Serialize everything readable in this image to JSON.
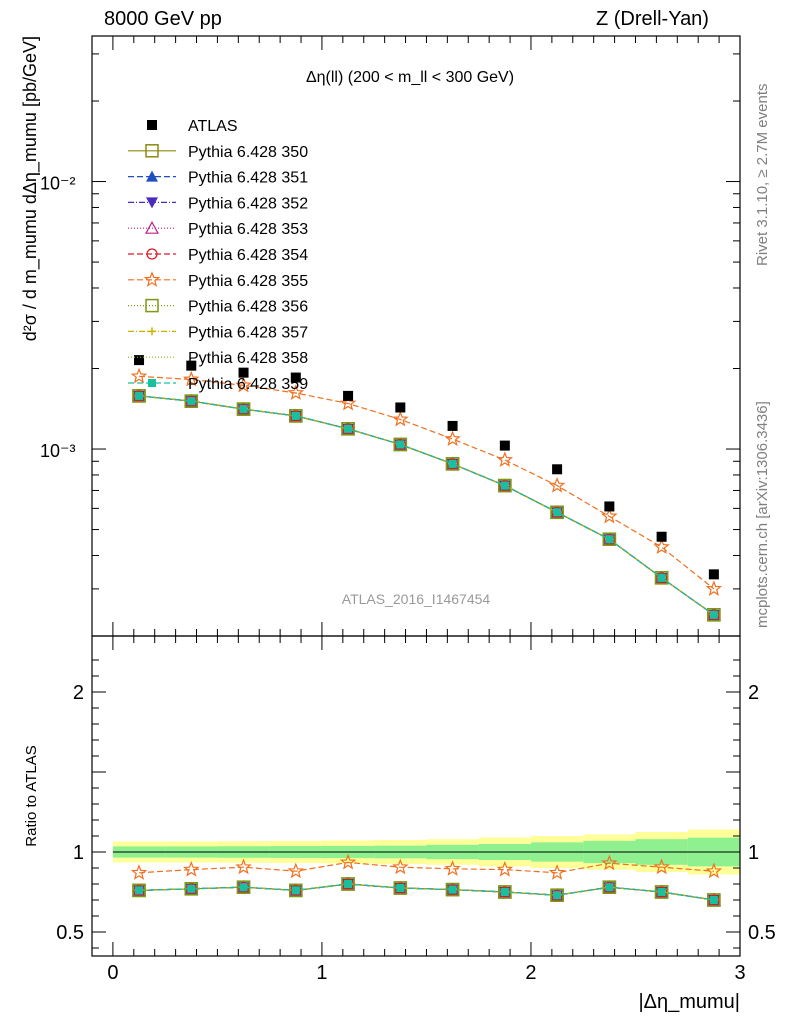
{
  "header": {
    "left": "8000 GeV pp",
    "right": "Z (Drell-Yan)"
  },
  "side_labels": {
    "rivet": "Rivet 3.1.10, ≥ 2.7M events",
    "mcplots": "mcplots.cern.ch [arXiv:1306.3436]"
  },
  "chart_data": {
    "type": "line",
    "title": "Δη(ll) (200 < m_ll < 300 GeV)",
    "watermark": "ATLAS_2016_I1467454",
    "ylabel": "d²σ / d m_mumu dΔη_mumu [pb/GeV]",
    "xlabel": "|Δη_mumu|",
    "ratio_ylabel": "Ratio to ATLAS",
    "yscale": "log",
    "ylim": [
      0.0002,
      0.035
    ],
    "xlim": [
      -0.1,
      3.0
    ],
    "ratio_ylim": [
      0.35,
      2.35
    ],
    "x_ticks": [
      "0",
      "1",
      "2",
      "3"
    ],
    "y_ticks": [
      "10⁻³",
      "10⁻²"
    ],
    "ratio_ticks": [
      "0.5",
      "1",
      "2"
    ],
    "grid": false,
    "legend_position": "top-left",
    "x": [
      0.125,
      0.375,
      0.625,
      0.875,
      1.125,
      1.375,
      1.625,
      1.875,
      2.125,
      2.375,
      2.625,
      2.875
    ],
    "atlas": [
      0.00215,
      0.00205,
      0.00193,
      0.00185,
      0.00158,
      0.00143,
      0.00122,
      0.00103,
      0.00084,
      0.00061,
      0.00047,
      0.00034
    ],
    "ratio_band_inner": [
      0.035,
      0.035,
      0.036,
      0.037,
      0.038,
      0.04,
      0.045,
      0.05,
      0.06,
      0.07,
      0.08,
      0.09
    ],
    "ratio_band_outer": [
      0.065,
      0.066,
      0.067,
      0.069,
      0.072,
      0.075,
      0.08,
      0.09,
      0.1,
      0.11,
      0.125,
      0.14
    ],
    "series": [
      {
        "name": "Pythia 6.428 350",
        "color": "#8b8b10",
        "marker": "square-open",
        "dash": "solid",
        "values": [
          0.00158,
          0.00151,
          0.00141,
          0.00133,
          0.00119,
          0.00104,
          0.00088,
          0.00073,
          0.00058,
          0.00046,
          0.00033,
          0.00024
        ],
        "ratio": [
          0.76,
          0.77,
          0.78,
          0.76,
          0.8,
          0.775,
          0.765,
          0.75,
          0.73,
          0.78,
          0.75,
          0.7
        ]
      },
      {
        "name": "Pythia 6.428 351",
        "color": "#1f4fbf",
        "marker": "triangle-up",
        "dash": "6,3",
        "values": [
          0.00158,
          0.00151,
          0.00141,
          0.00133,
          0.00119,
          0.00104,
          0.00088,
          0.00073,
          0.00058,
          0.00046,
          0.00033,
          0.00024
        ],
        "ratio": [
          0.76,
          0.77,
          0.78,
          0.76,
          0.8,
          0.775,
          0.765,
          0.75,
          0.73,
          0.78,
          0.75,
          0.7
        ]
      },
      {
        "name": "Pythia 6.428 352",
        "color": "#4b2cbf",
        "marker": "triangle-down",
        "dash": "6,2,1,2",
        "values": [
          0.00158,
          0.00151,
          0.00141,
          0.00133,
          0.00119,
          0.00104,
          0.00088,
          0.00073,
          0.00058,
          0.00046,
          0.00033,
          0.00024
        ],
        "ratio": [
          0.76,
          0.77,
          0.78,
          0.76,
          0.8,
          0.775,
          0.765,
          0.75,
          0.73,
          0.78,
          0.75,
          0.7
        ]
      },
      {
        "name": "Pythia 6.428 353",
        "color": "#bf1f8a",
        "marker": "triangle-open",
        "dash": "1,2",
        "values": [
          0.00158,
          0.00151,
          0.00141,
          0.00133,
          0.00119,
          0.00104,
          0.00088,
          0.00073,
          0.00058,
          0.00046,
          0.00033,
          0.00024
        ],
        "ratio": [
          0.76,
          0.77,
          0.78,
          0.76,
          0.8,
          0.775,
          0.765,
          0.75,
          0.73,
          0.78,
          0.75,
          0.7
        ]
      },
      {
        "name": "Pythia 6.428 354",
        "color": "#d91a2a",
        "marker": "circle-open",
        "dash": "6,3",
        "values": [
          0.00158,
          0.00151,
          0.00141,
          0.00133,
          0.00119,
          0.00104,
          0.00088,
          0.00073,
          0.00058,
          0.00046,
          0.00033,
          0.00024
        ],
        "ratio": [
          0.76,
          0.77,
          0.78,
          0.76,
          0.8,
          0.775,
          0.765,
          0.75,
          0.73,
          0.78,
          0.75,
          0.7
        ]
      },
      {
        "name": "Pythia 6.428 355",
        "color": "#f07020",
        "marker": "star-open",
        "dash": "6,3",
        "values": [
          0.00187,
          0.00182,
          0.00173,
          0.00162,
          0.00148,
          0.00129,
          0.00109,
          0.00091,
          0.00073,
          0.00056,
          0.00043,
          0.0003
        ],
        "ratio": [
          0.87,
          0.89,
          0.905,
          0.88,
          0.935,
          0.905,
          0.895,
          0.89,
          0.87,
          0.93,
          0.905,
          0.88
        ]
      },
      {
        "name": "Pythia 6.428 356",
        "color": "#7a9a10",
        "marker": "square-open",
        "dash": "1,2",
        "values": [
          0.00158,
          0.00151,
          0.00141,
          0.00133,
          0.00119,
          0.00104,
          0.00088,
          0.00073,
          0.00058,
          0.00046,
          0.00033,
          0.00024
        ],
        "ratio": [
          0.76,
          0.77,
          0.78,
          0.76,
          0.8,
          0.775,
          0.765,
          0.75,
          0.73,
          0.78,
          0.75,
          0.7
        ]
      },
      {
        "name": "Pythia 6.428 357",
        "color": "#c8b400",
        "marker": "cross",
        "dash": "6,2,1,2",
        "values": [
          0.00158,
          0.00151,
          0.00141,
          0.00133,
          0.00119,
          0.00104,
          0.00088,
          0.00073,
          0.00058,
          0.00046,
          0.00033,
          0.00024
        ],
        "ratio": [
          0.76,
          0.77,
          0.78,
          0.76,
          0.8,
          0.775,
          0.765,
          0.75,
          0.73,
          0.78,
          0.75,
          0.7
        ]
      },
      {
        "name": "Pythia 6.428 358",
        "color": "#8ab818",
        "marker": "none",
        "dash": "1,2",
        "values": [
          0.00158,
          0.00151,
          0.00141,
          0.00133,
          0.00119,
          0.00104,
          0.00088,
          0.00073,
          0.00058,
          0.00046,
          0.00033,
          0.00024
        ],
        "ratio": [
          0.76,
          0.77,
          0.78,
          0.76,
          0.8,
          0.775,
          0.765,
          0.75,
          0.73,
          0.78,
          0.75,
          0.7
        ]
      },
      {
        "name": "Pythia 6.428 359",
        "color": "#18c0a0",
        "marker": "square",
        "dash": "6,3",
        "values": [
          0.00158,
          0.00151,
          0.00141,
          0.00133,
          0.00119,
          0.00104,
          0.00088,
          0.00073,
          0.00058,
          0.00046,
          0.00033,
          0.00024
        ],
        "ratio": [
          0.76,
          0.77,
          0.78,
          0.76,
          0.8,
          0.775,
          0.765,
          0.75,
          0.73,
          0.78,
          0.75,
          0.7
        ]
      }
    ]
  }
}
